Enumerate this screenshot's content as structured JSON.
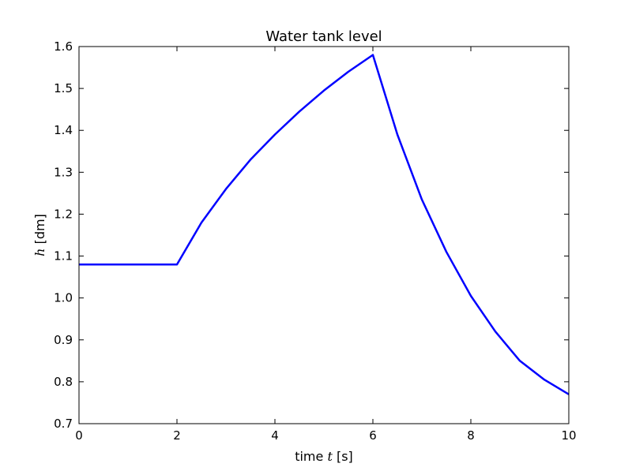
{
  "chart_data": {
    "type": "line",
    "title": "Water tank level",
    "xlabel": {
      "prefix": "time ",
      "var": "t",
      "suffix": " [s]"
    },
    "ylabel": {
      "var": "h",
      "suffix": " [dm]"
    },
    "xlim": [
      0,
      10
    ],
    "ylim": [
      0.7,
      1.6
    ],
    "xticks": [
      0,
      2,
      4,
      6,
      8,
      10
    ],
    "xtick_labels": [
      "0",
      "2",
      "4",
      "6",
      "8",
      "10"
    ],
    "yticks": [
      0.7,
      0.8,
      0.9,
      1.0,
      1.1,
      1.2,
      1.3,
      1.4,
      1.5,
      1.6
    ],
    "ytick_labels": [
      "0.7",
      "0.8",
      "0.9",
      "1.0",
      "1.1",
      "1.2",
      "1.3",
      "1.4",
      "1.5",
      "1.6"
    ],
    "grid": false,
    "series": [
      {
        "color": "#0000ff",
        "x": [
          0,
          1,
          2,
          2.5,
          3,
          3.5,
          4,
          4.5,
          5,
          5.5,
          6,
          6.5,
          7,
          7.5,
          8,
          8.5,
          9,
          9.5,
          10
        ],
        "y": [
          1.08,
          1.08,
          1.08,
          1.18,
          1.26,
          1.33,
          1.39,
          1.445,
          1.495,
          1.54,
          1.58,
          1.39,
          1.235,
          1.11,
          1.005,
          0.92,
          0.85,
          0.805,
          0.77
        ]
      }
    ]
  }
}
